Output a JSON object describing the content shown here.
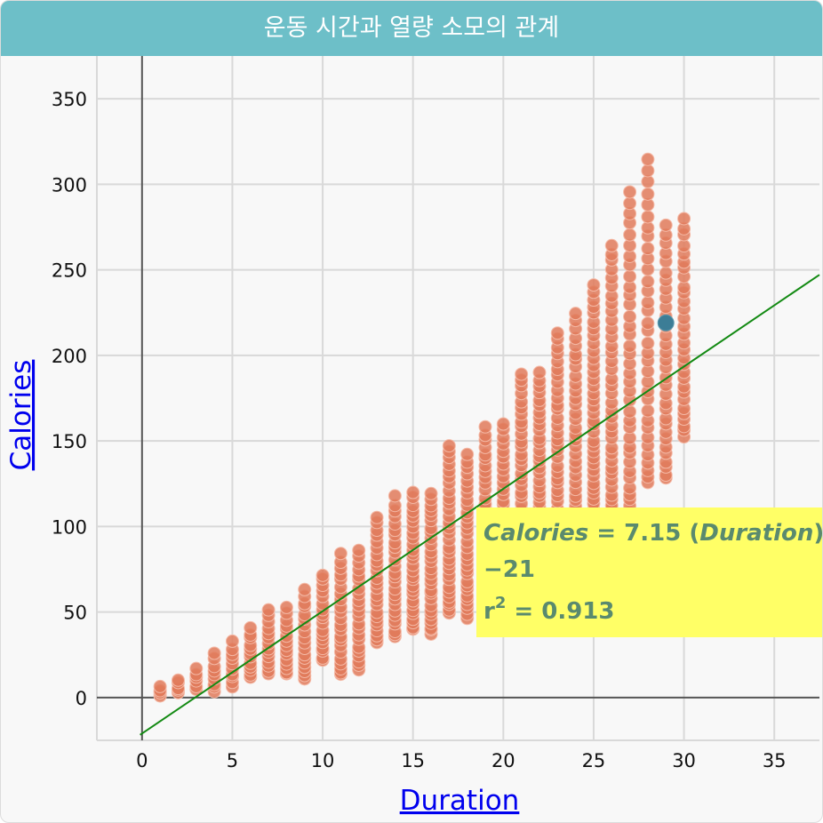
{
  "title": "운동 시간과 열량 소모의 관계",
  "colors": {
    "header": "#6dbfc8",
    "point": "#e07a5a",
    "highlight": "#3c7d96",
    "trendline": "#138a13",
    "equation_box": "#ffff66",
    "equation_text": "#5a8a6e",
    "axis_title": "#0000ee"
  },
  "equation": {
    "var_y": "Calories",
    "part1": " = 7.15 (",
    "var_x": "Duration",
    "part2": ")",
    "line2": "−21",
    "r_label": "r",
    "r_exp": "2",
    "r_value": " = 0.913"
  },
  "chart_data": {
    "type": "scatter",
    "xlabel": "Duration",
    "ylabel": "Calories",
    "xlim": [
      -2.5,
      37.5
    ],
    "ylim": [
      -25,
      375
    ],
    "xticks": [
      0,
      5,
      10,
      15,
      20,
      25,
      30,
      35
    ],
    "yticks": [
      0,
      50,
      100,
      150,
      200,
      250,
      300,
      350
    ],
    "grid": true,
    "regression": {
      "slope": 7.15,
      "intercept": -21,
      "r2": 0.913
    },
    "highlight": {
      "x": 29,
      "y": 219
    },
    "point_columns": [
      {
        "x": 1,
        "y_min": 1,
        "y_max": 7,
        "n": 4
      },
      {
        "x": 2,
        "y_min": 3,
        "y_max": 10,
        "n": 5
      },
      {
        "x": 3,
        "y_min": 5,
        "y_max": 17,
        "n": 6
      },
      {
        "x": 4,
        "y_min": 4,
        "y_max": 25,
        "n": 9
      },
      {
        "x": 5,
        "y_min": 7,
        "y_max": 32,
        "n": 10
      },
      {
        "x": 6,
        "y_min": 12,
        "y_max": 40,
        "n": 12
      },
      {
        "x": 7,
        "y_min": 14,
        "y_max": 51,
        "n": 14
      },
      {
        "x": 8,
        "y_min": 13,
        "y_max": 52,
        "n": 15
      },
      {
        "x": 9,
        "y_min": 10,
        "y_max": 63,
        "n": 18
      },
      {
        "x": 10,
        "y_min": 22,
        "y_max": 72,
        "n": 18
      },
      {
        "x": 11,
        "y_min": 13,
        "y_max": 84,
        "n": 22
      },
      {
        "x": 12,
        "y_min": 17,
        "y_max": 87,
        "n": 22
      },
      {
        "x": 13,
        "y_min": 32,
        "y_max": 105,
        "n": 24
      },
      {
        "x": 14,
        "y_min": 35,
        "y_max": 117,
        "n": 26
      },
      {
        "x": 15,
        "y_min": 40,
        "y_max": 120,
        "n": 28
      },
      {
        "x": 16,
        "y_min": 37,
        "y_max": 120,
        "n": 28
      },
      {
        "x": 17,
        "y_min": 49,
        "y_max": 148,
        "n": 30
      },
      {
        "x": 18,
        "y_min": 47,
        "y_max": 142,
        "n": 30
      },
      {
        "x": 19,
        "y_min": 68,
        "y_max": 158,
        "n": 28
      },
      {
        "x": 20,
        "y_min": 63,
        "y_max": 160,
        "n": 30
      },
      {
        "x": 21,
        "y_min": 80,
        "y_max": 190,
        "n": 32
      },
      {
        "x": 22,
        "y_min": 85,
        "y_max": 190,
        "n": 32
      },
      {
        "x": 23,
        "y_min": 90,
        "y_max": 214,
        "n": 34
      },
      {
        "x": 24,
        "y_min": 93,
        "y_max": 224,
        "n": 34
      },
      {
        "x": 25,
        "y_min": 108,
        "y_max": 242,
        "n": 36
      },
      {
        "x": 26,
        "y_min": 110,
        "y_max": 265,
        "n": 36
      },
      {
        "x": 27,
        "y_min": 108,
        "y_max": 295,
        "n": 36
      },
      {
        "x": 28,
        "y_min": 126,
        "y_max": 314,
        "n": 34
      },
      {
        "x": 29,
        "y_min": 128,
        "y_max": 276,
        "n": 32
      },
      {
        "x": 30,
        "y_min": 153,
        "y_max": 280,
        "n": 30
      }
    ]
  }
}
